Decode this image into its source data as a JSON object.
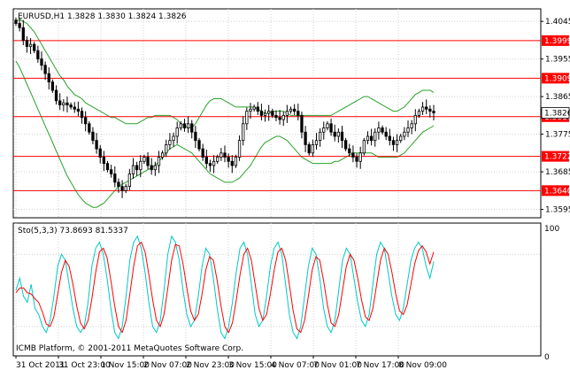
{
  "header": {
    "symbol_line": "EURUSD,H1  1.3828 1.3830 1.3824 1.3826"
  },
  "price_axis": {
    "ticks": [
      "1.4045",
      "1.3955",
      "1.3865",
      "1.3775",
      "1.3685",
      "1.3595"
    ],
    "levels": [
      {
        "label": "1.3999",
        "value": 1.3999
      },
      {
        "label": "1.3909",
        "value": 1.3909
      },
      {
        "label": "1.3817",
        "value": 1.3817
      },
      {
        "label": "1.3722",
        "value": 1.3722
      },
      {
        "label": "1.3640",
        "value": 1.364
      }
    ],
    "current_label": "1.3826",
    "current_value": 1.3826
  },
  "indicator": {
    "title": "Sto(5,3,3) 73.8693 81.5337",
    "ticks": [
      "100",
      "0"
    ],
    "copyright": "ICMB Platform, © 2001-2011 MetaQuotes Software Corp."
  },
  "time_axis": {
    "labels": [
      "31 Oct 2011",
      "31 Oct 23:00",
      "1 Nov 15:00",
      "2 Nov 07:00",
      "2 Nov 23:00",
      "3 Nov 15:00",
      "4 Nov 07:00",
      "7 Nov 01:00",
      "7 Nov 17:00",
      "8 Nov 09:00"
    ]
  },
  "colors": {
    "level_line": "#ff0000",
    "bands": "#2aa02a",
    "stoch_main": "#00c8c8",
    "stoch_signal": "#ff0000",
    "candle": "#000000"
  },
  "chart_data": {
    "type": "candlestick",
    "symbol": "EURUSD",
    "timeframe": "H1",
    "ohlc_last": {
      "open": 1.3828,
      "high": 1.383,
      "low": 1.3824,
      "close": 1.3826
    },
    "close": [
      1.404,
      1.403,
      1.4,
      1.3985,
      1.399,
      1.3975,
      1.3955,
      1.394,
      1.392,
      1.39,
      1.388,
      1.3855,
      1.3845,
      1.385,
      1.3845,
      1.384,
      1.3835,
      1.383,
      1.3815,
      1.38,
      1.378,
      1.376,
      1.374,
      1.372,
      1.3705,
      1.369,
      1.368,
      1.366,
      1.365,
      1.364,
      1.365,
      1.368,
      1.37,
      1.369,
      1.371,
      1.372,
      1.37,
      1.369,
      1.37,
      1.372,
      1.373,
      1.375,
      1.376,
      1.377,
      1.379,
      1.38,
      1.379,
      1.38,
      1.378,
      1.376,
      1.374,
      1.372,
      1.3705,
      1.37,
      1.371,
      1.372,
      1.373,
      1.372,
      1.371,
      1.37,
      1.372,
      1.376,
      1.38,
      1.383,
      1.3835,
      1.384,
      1.383,
      1.382,
      1.3825,
      1.383,
      1.382,
      1.3815,
      1.381,
      1.382,
      1.383,
      1.3835,
      1.383,
      1.382,
      1.378,
      1.375,
      1.373,
      1.375,
      1.376,
      1.378,
      1.379,
      1.38,
      1.378,
      1.377,
      1.378,
      1.376,
      1.374,
      1.373,
      1.372,
      1.371,
      1.373,
      1.376,
      1.377,
      1.376,
      1.378,
      1.379,
      1.378,
      1.377,
      1.376,
      1.375,
      1.376,
      1.377,
      1.378,
      1.379,
      1.38,
      1.382,
      1.383,
      1.384,
      1.3835,
      1.383,
      1.3826
    ],
    "bands": {
      "upper": [
        1.4045,
        1.405,
        1.4045,
        1.404,
        1.403,
        1.402,
        1.4005,
        1.399,
        1.3975,
        1.396,
        1.3945,
        1.393,
        1.3915,
        1.3905,
        1.389,
        1.388,
        1.387,
        1.3865,
        1.386,
        1.385,
        1.3845,
        1.384,
        1.3835,
        1.383,
        1.3825,
        1.382,
        1.3815,
        1.3815,
        1.381,
        1.3805,
        1.38,
        1.38,
        1.38,
        1.38,
        1.3805,
        1.381,
        1.3815,
        1.3815,
        1.382,
        1.382,
        1.382,
        1.382,
        1.382,
        1.3815,
        1.381,
        1.38,
        1.3795,
        1.379,
        1.379,
        1.38,
        1.3815,
        1.383,
        1.3845,
        1.3855,
        1.386,
        1.386,
        1.386,
        1.3855,
        1.385,
        1.3845,
        1.384,
        1.384,
        1.384,
        1.384,
        1.384,
        1.384,
        1.3835,
        1.383,
        1.3825,
        1.3825,
        1.383,
        1.383,
        1.383,
        1.383,
        1.3825,
        1.382,
        1.382,
        1.382,
        1.382,
        1.382,
        1.382,
        1.382,
        1.382,
        1.382,
        1.382,
        1.382,
        1.382,
        1.3825,
        1.383,
        1.3835,
        1.384,
        1.3845,
        1.385,
        1.3855,
        1.386,
        1.3865,
        1.3865,
        1.386,
        1.3855,
        1.385,
        1.3845,
        1.384,
        1.3835,
        1.383,
        1.383,
        1.3835,
        1.384,
        1.385,
        1.386,
        1.387,
        1.3875,
        1.388,
        1.388,
        1.388,
        1.3875
      ],
      "lower": [
        1.395,
        1.3935,
        1.3915,
        1.3895,
        1.3875,
        1.3855,
        1.3835,
        1.3815,
        1.3795,
        1.3775,
        1.3755,
        1.3735,
        1.3715,
        1.3695,
        1.3675,
        1.366,
        1.3645,
        1.363,
        1.362,
        1.361,
        1.3605,
        1.36,
        1.36,
        1.3605,
        1.361,
        1.362,
        1.363,
        1.364,
        1.365,
        1.3655,
        1.366,
        1.3665,
        1.367,
        1.3675,
        1.368,
        1.3685,
        1.369,
        1.3695,
        1.37,
        1.371,
        1.372,
        1.373,
        1.374,
        1.3745,
        1.375,
        1.3745,
        1.374,
        1.3735,
        1.373,
        1.372,
        1.371,
        1.37,
        1.369,
        1.368,
        1.3675,
        1.367,
        1.3665,
        1.366,
        1.366,
        1.366,
        1.3665,
        1.367,
        1.368,
        1.369,
        1.37,
        1.3715,
        1.373,
        1.3745,
        1.3755,
        1.376,
        1.3765,
        1.377,
        1.377,
        1.3765,
        1.376,
        1.375,
        1.374,
        1.373,
        1.372,
        1.3715,
        1.371,
        1.3705,
        1.3705,
        1.3705,
        1.3705,
        1.3705,
        1.3705,
        1.371,
        1.371,
        1.3715,
        1.372,
        1.3725,
        1.373,
        1.373,
        1.373,
        1.373,
        1.373,
        1.373,
        1.3725,
        1.372,
        1.372,
        1.372,
        1.372,
        1.372,
        1.372,
        1.3725,
        1.373,
        1.374,
        1.375,
        1.376,
        1.377,
        1.378,
        1.3785,
        1.379,
        1.3795
      ]
    },
    "stochastic": {
      "main_last": 73.8693,
      "signal_last": 81.5337,
      "main": [
        50,
        60,
        45,
        40,
        55,
        35,
        30,
        20,
        15,
        25,
        45,
        70,
        80,
        75,
        55,
        35,
        20,
        15,
        20,
        40,
        70,
        85,
        90,
        80,
        60,
        35,
        15,
        10,
        20,
        45,
        75,
        90,
        95,
        85,
        65,
        40,
        20,
        15,
        25,
        50,
        80,
        95,
        90,
        75,
        50,
        30,
        20,
        25,
        45,
        70,
        85,
        80,
        60,
        35,
        15,
        10,
        20,
        40,
        65,
        85,
        90,
        80,
        55,
        30,
        20,
        25,
        45,
        70,
        85,
        90,
        80,
        55,
        30,
        15,
        10,
        20,
        45,
        70,
        85,
        80,
        60,
        35,
        20,
        15,
        25,
        50,
        75,
        85,
        80,
        60,
        40,
        25,
        20,
        30,
        55,
        80,
        90,
        85,
        65,
        45,
        30,
        25,
        35,
        55,
        75,
        85,
        90,
        85,
        70,
        60,
        74
      ],
      "signal": [
        48,
        52,
        52,
        48,
        47,
        43,
        40,
        32,
        22,
        20,
        28,
        47,
        65,
        75,
        70,
        55,
        37,
        23,
        18,
        25,
        43,
        65,
        82,
        85,
        77,
        58,
        37,
        20,
        15,
        25,
        47,
        70,
        87,
        90,
        82,
        63,
        42,
        25,
        20,
        30,
        52,
        75,
        88,
        87,
        72,
        52,
        33,
        25,
        30,
        47,
        67,
        78,
        75,
        58,
        37,
        20,
        15,
        23,
        42,
        63,
        80,
        85,
        75,
        55,
        35,
        25,
        30,
        47,
        67,
        82,
        85,
        75,
        55,
        33,
        18,
        15,
        25,
        45,
        67,
        78,
        75,
        58,
        38,
        23,
        20,
        30,
        50,
        70,
        80,
        75,
        60,
        42,
        28,
        25,
        35,
        55,
        75,
        85,
        80,
        65,
        47,
        33,
        30,
        38,
        55,
        72,
        83,
        87,
        82,
        72,
        82
      ]
    }
  }
}
